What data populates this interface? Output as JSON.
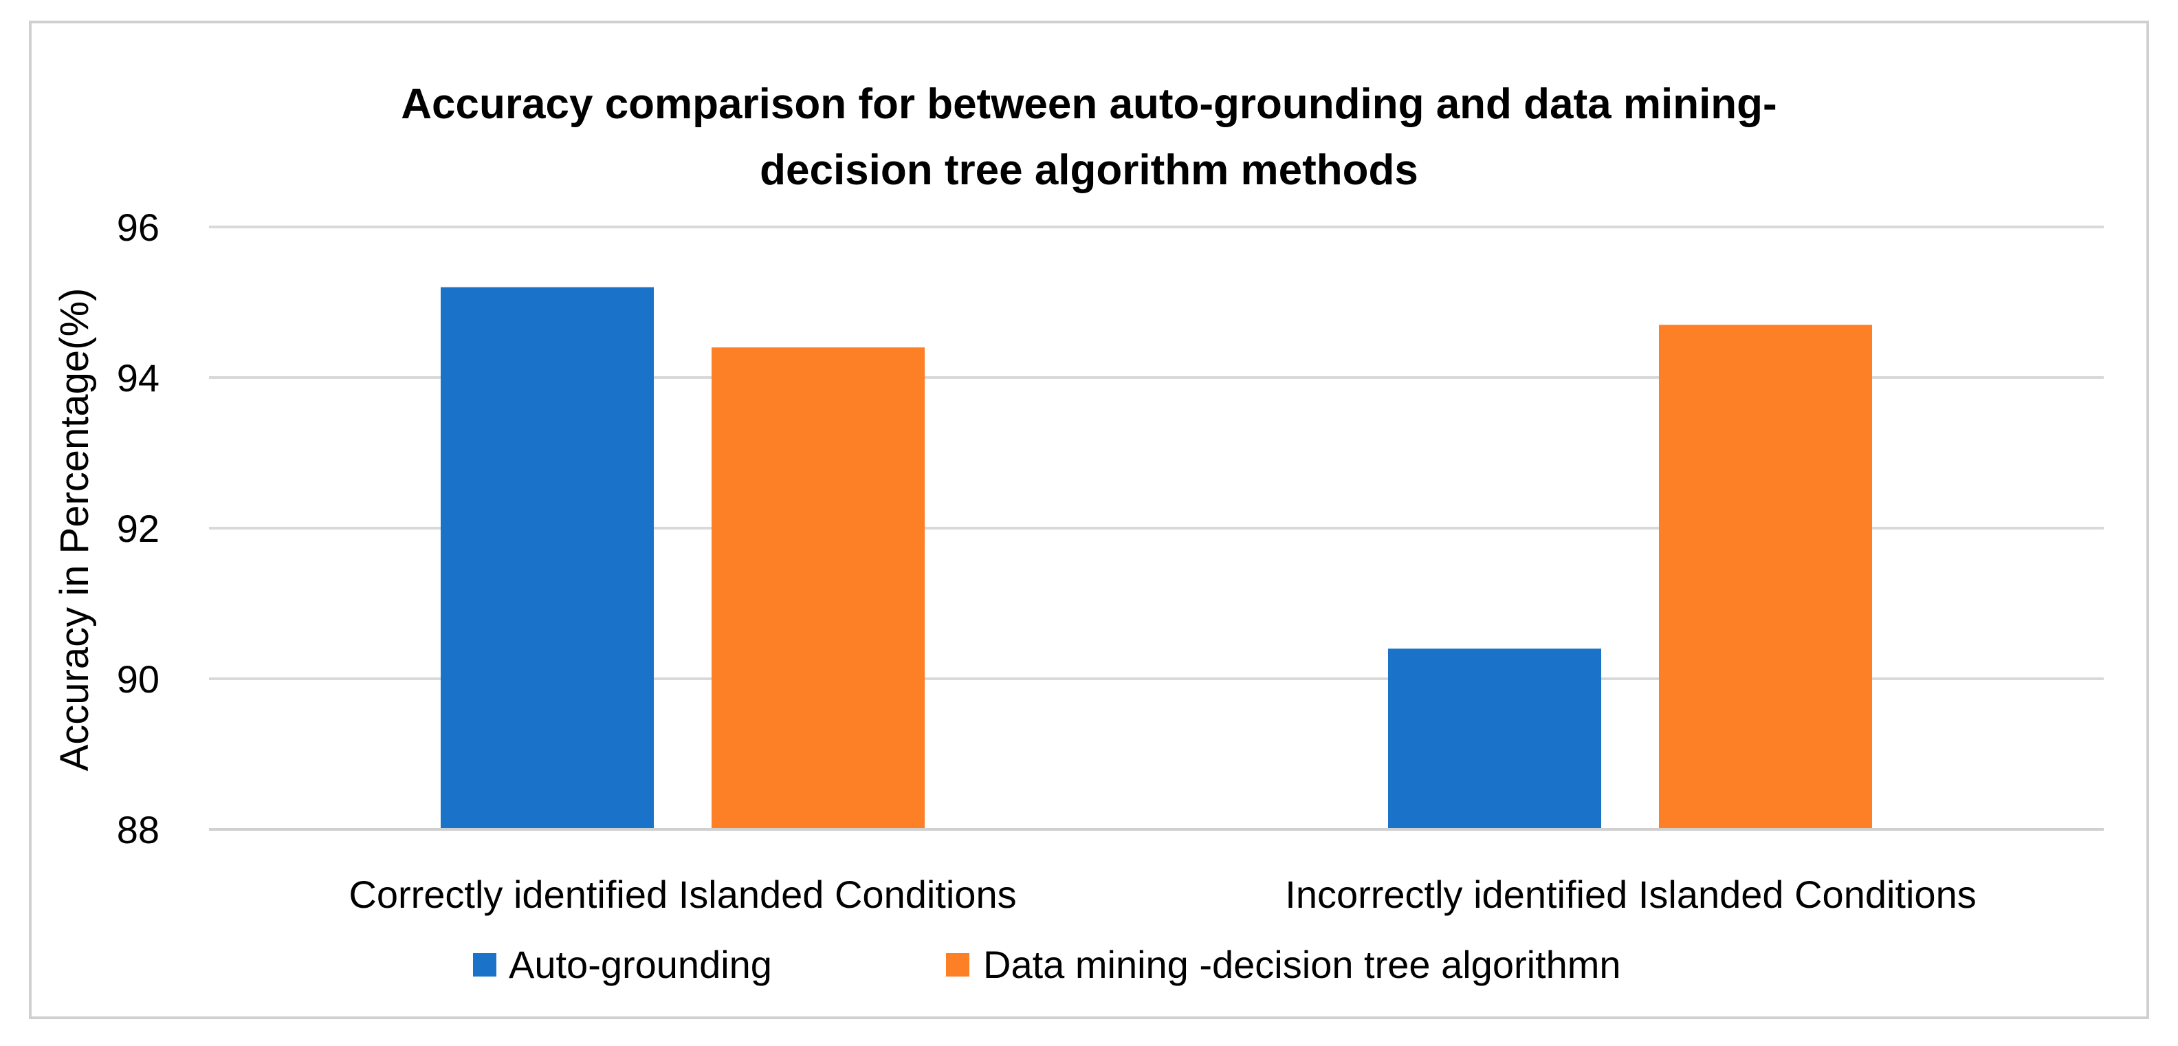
{
  "chart_data": {
    "type": "bar",
    "title_lines": [
      "Accuracy comparison for between auto-grounding and data mining-",
      "decision tree algorithm methods"
    ],
    "ylabel": "Accuracy in Percentage(%)",
    "xlabel": "",
    "categories": [
      "Correctly identified Islanded Conditions",
      "Incorrectly identified Islanded Conditions"
    ],
    "series": [
      {
        "name": "Auto-grounding",
        "values": [
          95.2,
          90.4
        ],
        "color": "#1a73c9"
      },
      {
        "name": "Data mining -decision tree algorithmn",
        "values": [
          94.4,
          94.7
        ],
        "color": "#fd7f26"
      }
    ],
    "ylim": [
      88,
      96
    ],
    "yticks": [
      "88",
      "90",
      "92",
      "94",
      "96"
    ],
    "grid": true,
    "legend_position": "bottom"
  }
}
